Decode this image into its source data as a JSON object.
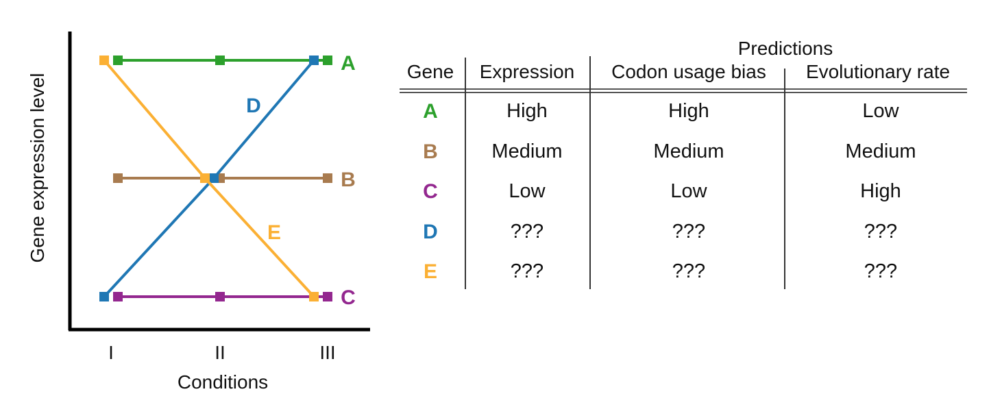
{
  "chart_data": {
    "type": "line",
    "xlabel": "Conditions",
    "ylabel": "Gene expression level",
    "categories": [
      "I",
      "II",
      "III"
    ],
    "levels": {
      "Low": 1,
      "Medium": 2,
      "High": 3
    },
    "series": [
      {
        "name": "A",
        "color": "#2ca02c",
        "values": [
          3,
          3,
          3
        ]
      },
      {
        "name": "B",
        "color": "#a87b4f",
        "values": [
          2,
          2,
          2
        ]
      },
      {
        "name": "C",
        "color": "#93278f",
        "values": [
          1,
          1,
          1
        ]
      },
      {
        "name": "D",
        "color": "#1f77b4",
        "values": [
          1,
          2,
          3
        ]
      },
      {
        "name": "E",
        "color": "#fbb034",
        "values": [
          3,
          2,
          1
        ]
      }
    ]
  },
  "table": {
    "super_header": "Predictions",
    "headers": {
      "gene": "Gene",
      "expression": "Expression",
      "codon": "Codon usage bias",
      "evo": "Evolutionary rate"
    },
    "rows": [
      {
        "gene": "A",
        "color": "#2ca02c",
        "expression": "High",
        "codon": "High",
        "evo": "Low"
      },
      {
        "gene": "B",
        "color": "#a87b4f",
        "expression": "Medium",
        "codon": "Medium",
        "evo": "Medium"
      },
      {
        "gene": "C",
        "color": "#93278f",
        "expression": "Low",
        "codon": "Low",
        "evo": "High"
      },
      {
        "gene": "D",
        "color": "#1f77b4",
        "expression": "???",
        "codon": "???",
        "evo": "???"
      },
      {
        "gene": "E",
        "color": "#fbb034",
        "expression": "???",
        "codon": "???",
        "evo": "???"
      }
    ]
  }
}
